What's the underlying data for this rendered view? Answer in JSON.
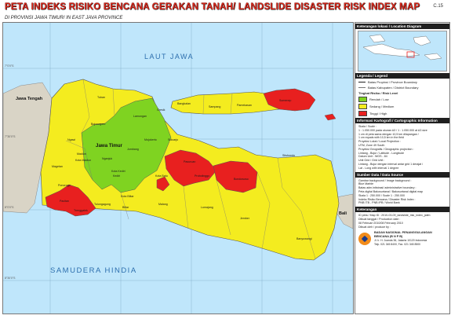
{
  "header": {
    "title": "PETA INDEKS RISIKO BENCANA GERAKAN TANAH/ LANDSLIDE DISASTER RISK INDEX MAP",
    "subtitle": "DI PROVINSI JAWA TIMUR/ IN EAST JAVA PROVINCE",
    "sheet": "C.15"
  },
  "map": {
    "seas": {
      "north": "LAUT JAWA",
      "south": "SAMUDERA HINDIA"
    },
    "neighbors": {
      "west": "Jawa Tengah",
      "east": "Bali"
    },
    "province_label": "Jawa Timur",
    "regencies": [
      {
        "name": "Tuban",
        "risk": "medium"
      },
      {
        "name": "Bojonegoro",
        "risk": "medium"
      },
      {
        "name": "Lamongan",
        "risk": "low"
      },
      {
        "name": "Gresik",
        "risk": "low"
      },
      {
        "name": "Ngawi",
        "risk": "low"
      },
      {
        "name": "Magetan",
        "risk": "medium"
      },
      {
        "name": "Madiun",
        "risk": "low"
      },
      {
        "name": "Kota Madiun",
        "risk": "low"
      },
      {
        "name": "Nganjuk",
        "risk": "low"
      },
      {
        "name": "Jombang",
        "risk": "low"
      },
      {
        "name": "Mojokerto",
        "risk": "low"
      },
      {
        "name": "Sidoarjo",
        "risk": "medium"
      },
      {
        "name": "Ponorogo",
        "risk": "medium"
      },
      {
        "name": "Pacitan",
        "risk": "high"
      },
      {
        "name": "Trenggalek",
        "risk": "high"
      },
      {
        "name": "Tulungagung",
        "risk": "medium"
      },
      {
        "name": "Kediri",
        "risk": "low"
      },
      {
        "name": "Kota Kediri",
        "risk": "low"
      },
      {
        "name": "Blitar",
        "risk": "medium"
      },
      {
        "name": "Kota Blitar",
        "risk": "medium"
      },
      {
        "name": "Malang",
        "risk": "medium"
      },
      {
        "name": "Kota Batu",
        "risk": "high"
      },
      {
        "name": "Pasuruan",
        "risk": "high"
      },
      {
        "name": "Probolinggo",
        "risk": "high"
      },
      {
        "name": "Lumajang",
        "risk": "medium"
      },
      {
        "name": "Jember",
        "risk": "medium"
      },
      {
        "name": "Bondowoso",
        "risk": "high"
      },
      {
        "name": "Situbondo",
        "risk": "medium"
      },
      {
        "name": "Banyuwangi",
        "risk": "medium"
      },
      {
        "name": "Bangkalan",
        "risk": "medium"
      },
      {
        "name": "Sampang",
        "risk": "medium"
      },
      {
        "name": "Pamekasan",
        "risk": "medium"
      },
      {
        "name": "Sumenep",
        "risk": "high"
      }
    ]
  },
  "legend": {
    "inset_title": "Keterangan lokasi / Location Diagram",
    "legend_title": "Legenda / Legend",
    "boundaries": [
      "Batas Propinsi / Province Boundary",
      "Batas Kabupaten / District Boundary"
    ],
    "risk_title": "Tingkat Risiko / Risk Level",
    "risk_levels": [
      {
        "label": "Rendah / Low",
        "color": "#7fd321"
      },
      {
        "label": "Sedang / Medium",
        "color": "#f4ec1f"
      },
      {
        "label": "Tinggi / High",
        "color": "#e8201f"
      }
    ],
    "cartographic_title": "Informasi Kartografi / Cartographic Information",
    "cartographic_lines": [
      "Skala / Scale :",
      "1 : 1.050.000 pada ukuran A3 / 1 : 1.050.000 at A3 size",
      "1 cm di peta sama dengan 10,5 km dilapangan /",
      "1 cm equals with 10,5 km in the field",
      "Proyeksi Lokal / Local Projection :",
      "UTM, Zone 49 South",
      "Proyeksi Geografis / Geographic projection :",
      "Lintang - Bujur / Latitude - Longitude",
      "Datum Unit : WGS - 84",
      "Unit Grid / Grid Unit :",
      "Lintang - Bujur dengan interval antar grid 1 derajat /",
      "Lat - Long with interval 1 degree"
    ],
    "source_title": "Sumber Data / Data Source",
    "source_lines": [
      "Gambar background / Image background :",
      "Blue Marble",
      "Batas adm.intistrasi/ administrative boundary :",
      "Peta digital Bakosurtanal / Bakosurtanal digital map",
      "Skala 1 : 250.000 / Scale 1 : 250.000",
      "Indeks Risiko Bencana / Disaster Risk Index :",
      "PNB ITB - PNB IPB / World Bank"
    ],
    "notes_title": "Keterangan",
    "notes_lines": [
      "ID peta / Map ID : 2010-03-09_landslide_risk_index_jatim",
      "Dibuat tanggal / Production date :",
      "08 Februari 2010/08 February 2010",
      "Dibuat oleh / produce by :"
    ],
    "agency": {
      "name": "BADAN NASIONAL PENANGGULANGAN BENCANA (B N P B)",
      "address": "Jl. Ir. H. Juanda 36, Jakarta 10120 Indonesia",
      "phone": "Telp. 021 345 8400, Fax. 021 345 8500"
    }
  }
}
